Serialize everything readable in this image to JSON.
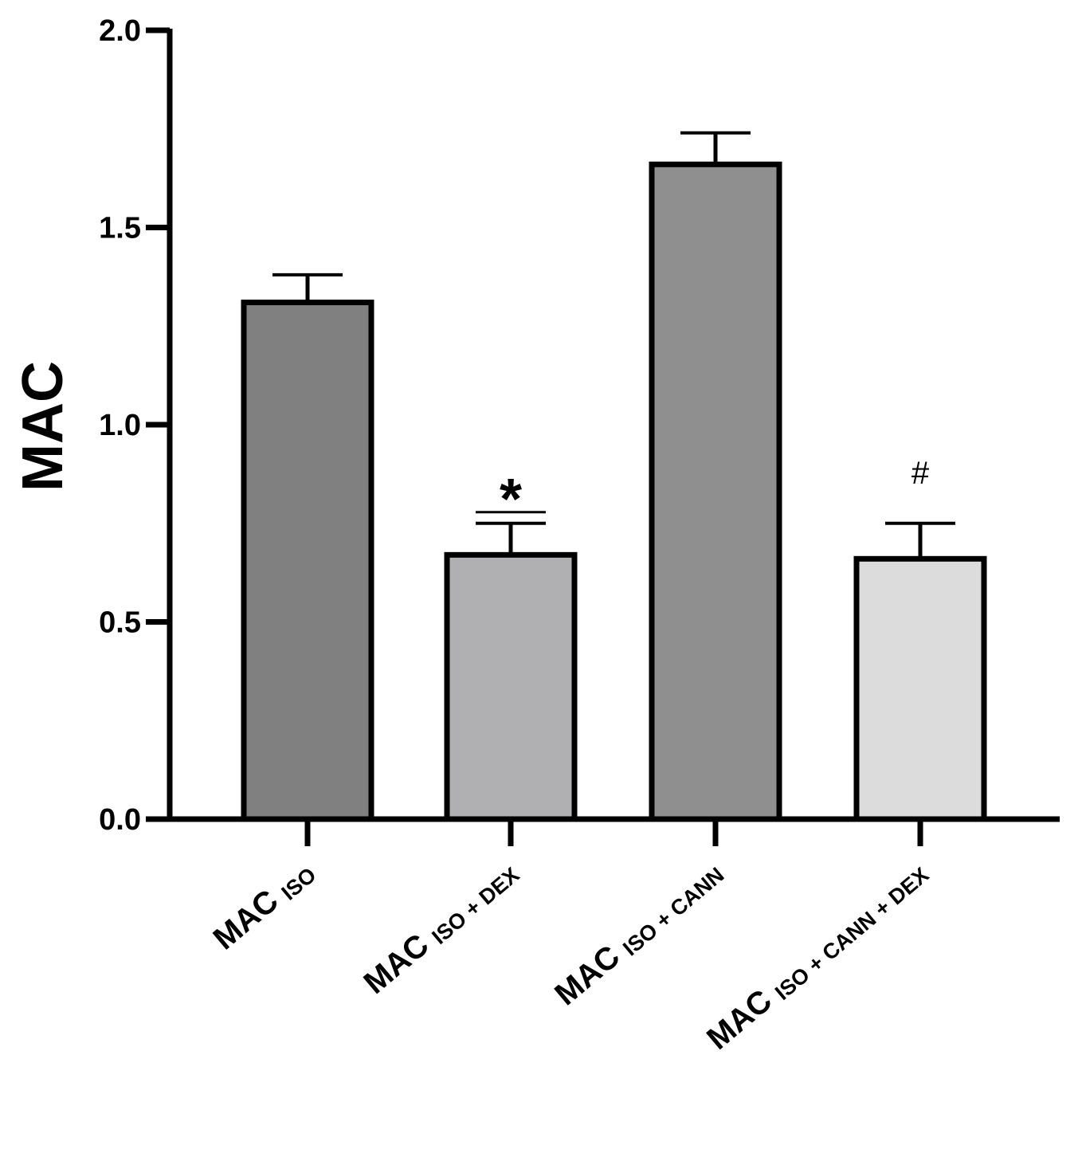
{
  "chart_data": {
    "type": "bar",
    "ylabel": "MAC",
    "ylim": [
      0,
      2.0
    ],
    "yticks": [
      "0.0",
      "0.5",
      "1.0",
      "1.5",
      "2.0"
    ],
    "grid": false,
    "legend": "none",
    "categories": [
      {
        "main": "MAC",
        "sub": "ISO"
      },
      {
        "main": "MAC",
        "sub": "ISO + DEX"
      },
      {
        "main": "MAC",
        "sub": "ISO + CANN"
      },
      {
        "main": "MAC",
        "sub": "ISO + CANN + DEX"
      }
    ],
    "values": [
      1.31,
      0.67,
      1.66,
      0.66
    ],
    "errors": [
      0.07,
      0.08,
      0.08,
      0.09
    ],
    "colors": [
      "#808080",
      "#b0b0b2",
      "#8f8f8f",
      "#dcdcdc"
    ],
    "annotations": [
      {
        "index": 1,
        "text": "*",
        "type": "significance-bar"
      },
      {
        "index": 3,
        "text": "#",
        "type": "label"
      }
    ]
  }
}
